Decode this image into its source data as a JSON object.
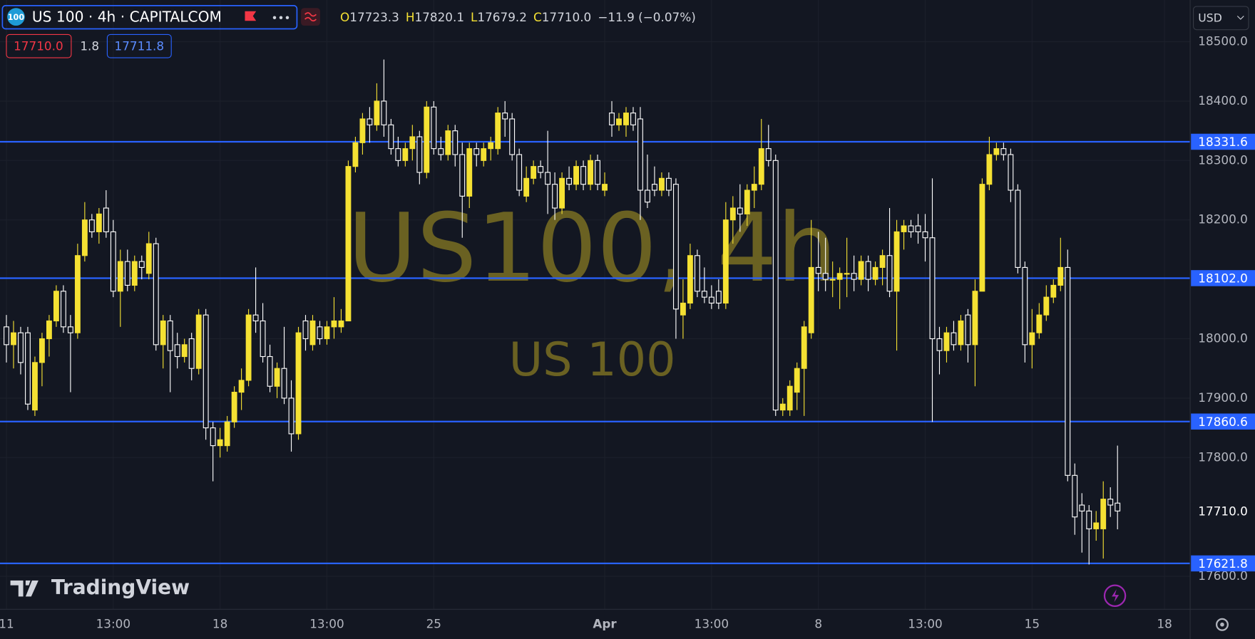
{
  "header": {
    "logo": "100",
    "symbol": "US 100 · 4h · CAPITALCOM",
    "ohlc": [
      {
        "key": "O",
        "value": "17723.3"
      },
      {
        "key": "H",
        "value": "17820.1"
      },
      {
        "key": "L",
        "value": "17679.2"
      },
      {
        "key": "C",
        "value": "17710.0"
      }
    ],
    "change": "−11.9 (−0.07%)",
    "sell": "17710.0",
    "spread": "1.8",
    "buy": "17711.8",
    "currency": "USD",
    "brand": "TradingView"
  },
  "chart_data": {
    "type": "candlestick",
    "up_color": "#f5e133",
    "down_color": "#ffffff",
    "ylim": [
      17544.5,
      18570.2
    ],
    "yticks": [
      {
        "value": 17600,
        "label": "17600.0"
      },
      {
        "value": 17800,
        "label": "17800.0"
      },
      {
        "value": 17900,
        "label": "17900.0"
      },
      {
        "value": 18000,
        "label": "18000.0"
      },
      {
        "value": 18200,
        "label": "18200.0"
      },
      {
        "value": 18300,
        "label": "18300.0"
      },
      {
        "value": 18400,
        "label": "18400.0"
      },
      {
        "value": 18500,
        "label": "18500.0"
      }
    ],
    "xlim": [
      -0.9,
      166.2
    ],
    "xticks": [
      {
        "value": 0,
        "label": "11"
      },
      {
        "value": 15,
        "label": "13:00"
      },
      {
        "value": 30,
        "label": "18"
      },
      {
        "value": 45,
        "label": "13:00"
      },
      {
        "value": 60,
        "label": "25"
      },
      {
        "value": 84,
        "label": "Apr"
      },
      {
        "value": 99,
        "label": "13:00"
      },
      {
        "value": 114,
        "label": "8"
      },
      {
        "value": 129,
        "label": "13:00"
      },
      {
        "value": 144,
        "label": "15"
      },
      {
        "value": 162.6,
        "label": "18"
      }
    ],
    "grid": true,
    "hline_color": "#2962ff",
    "hlines": [
      {
        "value": 18331.6,
        "label": "18331.6"
      },
      {
        "value": 18102.0,
        "label": "18102.0"
      },
      {
        "value": 17860.6,
        "label": "17860.6"
      },
      {
        "value": 17621.8,
        "label": "17621.8"
      }
    ],
    "price_label": {
      "value": 17710.0,
      "label": "17710.0"
    },
    "watermark": {
      "title": "US100, 4h",
      "subtitle": "US 100"
    },
    "candles": [
      [
        18020,
        18040,
        17960,
        17990
      ],
      [
        17990,
        18030,
        17950,
        18010
      ],
      [
        18010,
        18020,
        17940,
        17960
      ],
      [
        18010,
        18020,
        17880,
        17890
      ],
      [
        17880,
        17970,
        17870,
        17960
      ],
      [
        17960,
        18010,
        17920,
        18000
      ],
      [
        18000,
        18040,
        17970,
        18030
      ],
      [
        18030,
        18090,
        18020,
        18080
      ],
      [
        18080,
        18090,
        18010,
        18020
      ],
      [
        18020,
        18040,
        17910,
        18010
      ],
      [
        18010,
        18160,
        18000,
        18140
      ],
      [
        18140,
        18230,
        18130,
        18200
      ],
      [
        18200,
        18210,
        18170,
        18180
      ],
      [
        18180,
        18220,
        18160,
        18210
      ],
      [
        18220,
        18250,
        18170,
        18180
      ],
      [
        18180,
        18200,
        18070,
        18080
      ],
      [
        18080,
        18150,
        18020,
        18130
      ],
      [
        18130,
        18150,
        18080,
        18090
      ],
      [
        18090,
        18140,
        18080,
        18130
      ],
      [
        18130,
        18140,
        18100,
        18120
      ],
      [
        18110,
        18180,
        18100,
        18160
      ],
      [
        18160,
        18170,
        17980,
        17990
      ],
      [
        17990,
        18040,
        17950,
        18030
      ],
      [
        18030,
        18040,
        17910,
        17980
      ],
      [
        17990,
        18010,
        17950,
        17970
      ],
      [
        17970,
        18000,
        17960,
        17990
      ],
      [
        18000,
        18010,
        17930,
        17950
      ],
      [
        17950,
        18050,
        17940,
        18040
      ],
      [
        18040,
        18050,
        17830,
        17850
      ],
      [
        17850,
        17860,
        17760,
        17820
      ],
      [
        17820,
        17850,
        17800,
        17830
      ],
      [
        17820,
        17870,
        17810,
        17860
      ],
      [
        17860,
        17920,
        17850,
        17910
      ],
      [
        17910,
        17950,
        17880,
        17930
      ],
      [
        17930,
        18050,
        17920,
        18040
      ],
      [
        18040,
        18120,
        18010,
        18030
      ],
      [
        18030,
        18060,
        17960,
        17970
      ],
      [
        17970,
        17990,
        17910,
        17920
      ],
      [
        17920,
        17960,
        17900,
        17950
      ],
      [
        17950,
        18020,
        17890,
        17900
      ],
      [
        17900,
        17930,
        17810,
        17840
      ],
      [
        17840,
        18020,
        17830,
        18010
      ],
      [
        18030,
        18040,
        17980,
        18000
      ],
      [
        17990,
        18040,
        17980,
        18030
      ],
      [
        18020,
        18030,
        17990,
        18000
      ],
      [
        18000,
        18030,
        17990,
        18020
      ],
      [
        18020,
        18070,
        18000,
        18030
      ],
      [
        18020,
        18050,
        18010,
        18030
      ],
      [
        18030,
        18300,
        18030,
        18290
      ],
      [
        18290,
        18340,
        18280,
        18330
      ],
      [
        18330,
        18380,
        18310,
        18370
      ],
      [
        18370,
        18390,
        18330,
        18360
      ],
      [
        18360,
        18430,
        18350,
        18400
      ],
      [
        18400,
        18470,
        18340,
        18360
      ],
      [
        18360,
        18370,
        18310,
        18320
      ],
      [
        18320,
        18340,
        18290,
        18300
      ],
      [
        18300,
        18330,
        18290,
        18320
      ],
      [
        18320,
        18360,
        18300,
        18340
      ],
      [
        18340,
        18350,
        18260,
        18280
      ],
      [
        18280,
        18400,
        18270,
        18390
      ],
      [
        18390,
        18400,
        18310,
        18320
      ],
      [
        18320,
        18340,
        18300,
        18310
      ],
      [
        18310,
        18360,
        18300,
        18350
      ],
      [
        18350,
        18360,
        18290,
        18310
      ],
      [
        18310,
        18330,
        18170,
        18240
      ],
      [
        18240,
        18330,
        18220,
        18320
      ],
      [
        18320,
        18330,
        18290,
        18310
      ],
      [
        18300,
        18330,
        18290,
        18320
      ],
      [
        18320,
        18340,
        18300,
        18330
      ],
      [
        18320,
        18390,
        18310,
        18380
      ],
      [
        18380,
        18400,
        18340,
        18370
      ],
      [
        18370,
        18380,
        18300,
        18310
      ],
      [
        18310,
        18320,
        18240,
        18250
      ],
      [
        18240,
        18290,
        18230,
        18270
      ],
      [
        18270,
        18300,
        18260,
        18290
      ],
      [
        18290,
        18300,
        18270,
        18280
      ],
      [
        18280,
        18350,
        18210,
        18260
      ],
      [
        18260,
        18280,
        18200,
        18220
      ],
      [
        18220,
        18280,
        18210,
        18270
      ],
      [
        18270,
        18290,
        18250,
        18260
      ],
      [
        18260,
        18300,
        18250,
        18290
      ],
      [
        18290,
        18300,
        18250,
        18260
      ],
      [
        18260,
        18310,
        18250,
        18300
      ],
      [
        18300,
        18310,
        18250,
        18260
      ],
      [
        18250,
        18280,
        18240,
        18260
      ],
      [
        18380,
        18400,
        18340,
        18360
      ],
      [
        18360,
        18380,
        18350,
        18370
      ],
      [
        18360,
        18390,
        18340,
        18380
      ],
      [
        18380,
        18390,
        18350,
        18360
      ],
      [
        18370,
        18390,
        18200,
        18250
      ],
      [
        18250,
        18310,
        18220,
        18230
      ],
      [
        18260,
        18290,
        18240,
        18250
      ],
      [
        18250,
        18280,
        18240,
        18270
      ],
      [
        18270,
        18280,
        18240,
        18250
      ],
      [
        18260,
        18270,
        18000,
        18050
      ],
      [
        18040,
        18100,
        18000,
        18060
      ],
      [
        18060,
        18160,
        18050,
        18140
      ],
      [
        18140,
        18150,
        18070,
        18080
      ],
      [
        18080,
        18120,
        18060,
        18070
      ],
      [
        18070,
        18090,
        18050,
        18060
      ],
      [
        18080,
        18100,
        18050,
        18060
      ],
      [
        18060,
        18230,
        18050,
        18200
      ],
      [
        18200,
        18240,
        18160,
        18220
      ],
      [
        18220,
        18260,
        18180,
        18210
      ],
      [
        18210,
        18260,
        18190,
        18250
      ],
      [
        18250,
        18290,
        18220,
        18260
      ],
      [
        18260,
        18370,
        18250,
        18320
      ],
      [
        18320,
        18360,
        18290,
        18300
      ],
      [
        18300,
        18310,
        17870,
        17880
      ],
      [
        17880,
        17900,
        17870,
        17890
      ],
      [
        17880,
        17930,
        17870,
        17920
      ],
      [
        17910,
        17960,
        17880,
        17950
      ],
      [
        17950,
        18030,
        17870,
        18020
      ],
      [
        18010,
        18200,
        18000,
        18120
      ],
      [
        18120,
        18180,
        18080,
        18110
      ],
      [
        18110,
        18170,
        18080,
        18100
      ],
      [
        18100,
        18130,
        18070,
        18100
      ],
      [
        18100,
        18120,
        18050,
        18110
      ],
      [
        18110,
        18170,
        18070,
        18110
      ],
      [
        18110,
        18140,
        18080,
        18100
      ],
      [
        18100,
        18140,
        18090,
        18130
      ],
      [
        18130,
        18140,
        18080,
        18100
      ],
      [
        18100,
        18130,
        18090,
        18120
      ],
      [
        18120,
        18150,
        18090,
        18140
      ],
      [
        18140,
        18220,
        18070,
        18080
      ],
      [
        18080,
        18200,
        17980,
        18180
      ],
      [
        18180,
        18200,
        18150,
        18190
      ],
      [
        18190,
        18200,
        18170,
        18180
      ],
      [
        18190,
        18210,
        18160,
        18180
      ],
      [
        18180,
        18210,
        18130,
        18170
      ],
      [
        18170,
        18270,
        17860,
        18000
      ],
      [
        18000,
        18020,
        17940,
        17980
      ],
      [
        17980,
        18020,
        17960,
        18010
      ],
      [
        18010,
        18030,
        17980,
        17990
      ],
      [
        17990,
        18040,
        17980,
        18030
      ],
      [
        18040,
        18050,
        17960,
        17990
      ],
      [
        17990,
        18100,
        17920,
        18080
      ],
      [
        18080,
        18270,
        18080,
        18260
      ],
      [
        18260,
        18340,
        18250,
        18310
      ],
      [
        18310,
        18330,
        18300,
        18320
      ],
      [
        18320,
        18330,
        18300,
        18310
      ],
      [
        18310,
        18320,
        18230,
        18250
      ],
      [
        18250,
        18260,
        18110,
        18120
      ],
      [
        18120,
        18130,
        17960,
        17990
      ],
      [
        17990,
        18050,
        17950,
        18010
      ],
      [
        18010,
        18060,
        18000,
        18040
      ],
      [
        18040,
        18090,
        18030,
        18070
      ],
      [
        18070,
        18100,
        18060,
        18090
      ],
      [
        18090,
        18170,
        18080,
        18120
      ],
      [
        18120,
        18150,
        17760,
        17770
      ],
      [
        17770,
        17790,
        17670,
        17700
      ],
      [
        17720,
        17740,
        17640,
        17710
      ],
      [
        17710,
        17720,
        17620,
        17680
      ],
      [
        17680,
        17710,
        17660,
        17690
      ],
      [
        17680,
        17760,
        17630,
        17730
      ],
      [
        17730,
        17750,
        17700,
        17720
      ],
      [
        17723.3,
        17820.1,
        17679.2,
        17710.0
      ]
    ]
  }
}
